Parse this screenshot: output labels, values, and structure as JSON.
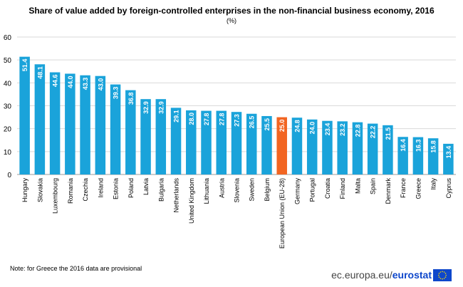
{
  "header": {
    "title": "Share of value added by foreign-controlled enterprises in the non-financial business economy, 2016",
    "unit": "(%)"
  },
  "footer": {
    "note": "Note: for Greece the 2016 data are provisional",
    "brand_site": "ec.europa.eu/",
    "brand_name": "eurostat"
  },
  "colors": {
    "bar": "#1aa3da",
    "highlight": "#f26522",
    "grid": "#d9d9d9",
    "brand_blue": "#0e47cb",
    "flag_star": "#ffdd00"
  },
  "chart_data": {
    "type": "bar",
    "title": "Share of value added by foreign-controlled enterprises in the non-financial business economy, 2016",
    "subtitle": "(%)",
    "categories": [
      "Hungary",
      "Slovakia",
      "Luxembourg",
      "Romania",
      "Czechia",
      "Ireland",
      "Estonia",
      "Poland",
      "Latvia",
      "Bulgaria",
      "Netherlands",
      "United Kingdom",
      "Lithuania",
      "Austria",
      "Slovenia",
      "Sweden",
      "Belgium",
      "European Union (EU-28)",
      "Germany",
      "Portugal",
      "Croatia",
      "Finland",
      "Malta",
      "Spain",
      "Denmark",
      "France",
      "Greece",
      "Italy",
      "Cyprus"
    ],
    "values": [
      51.4,
      48.1,
      44.6,
      44.0,
      43.3,
      43.0,
      39.3,
      36.8,
      32.9,
      32.9,
      29.1,
      28.0,
      27.8,
      27.8,
      27.3,
      26.5,
      25.5,
      25.0,
      24.8,
      24.0,
      23.4,
      23.2,
      22.8,
      22.2,
      21.5,
      16.4,
      16.3,
      15.8,
      13.4
    ],
    "value_labels": [
      "51.4",
      "48.1",
      "44.6",
      "44.0",
      "43.3",
      "43.0",
      "39.3",
      "36.8",
      "32.9",
      "32.9",
      "29.1",
      "28.0",
      "27.8",
      "27.8",
      "27.3",
      "26.5",
      "25.5",
      "25.0",
      "24.8",
      "24.0",
      "23.4",
      "23.2",
      "22.8",
      "22.2",
      "21.5",
      "16.4",
      "16.3",
      "15.8",
      "13.4"
    ],
    "highlight_category": "European Union (EU-28)",
    "ylim": [
      0,
      60
    ],
    "yticks": [
      0,
      10,
      20,
      30,
      40,
      50,
      60
    ],
    "xlabel": "",
    "ylabel": "",
    "grid": true,
    "legend": "none"
  }
}
